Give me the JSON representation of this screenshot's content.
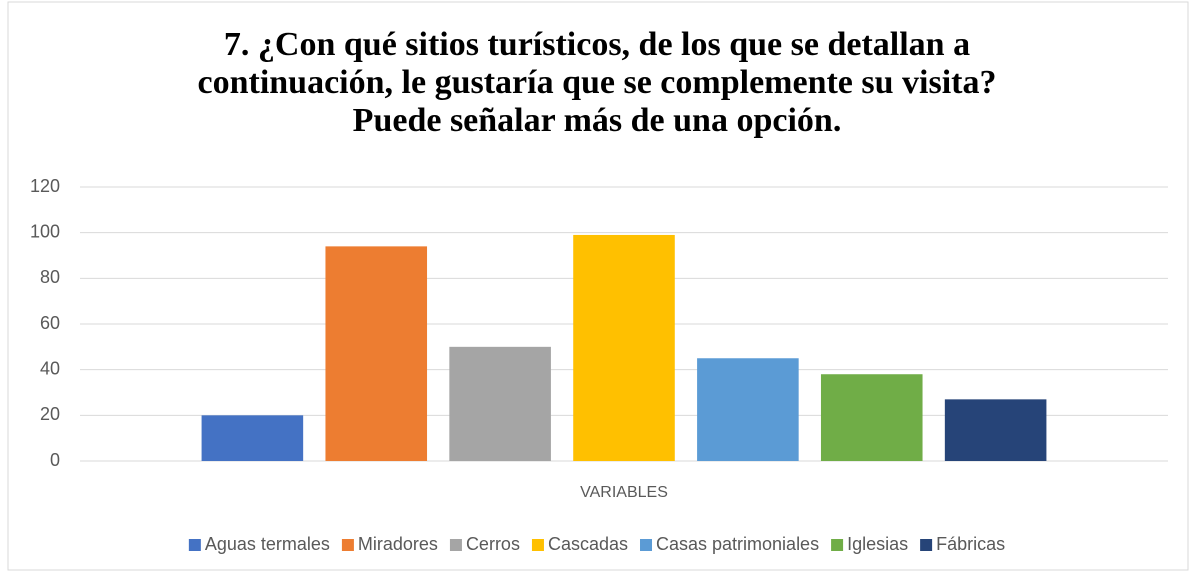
{
  "chart_data": {
    "type": "bar",
    "title": "7. ¿Con qué sitios turísticos, de los que se detallan a continuación, le gustaría que se complemente su visita? Puede señalar más de una opción.",
    "categories": [
      "VARIABLES"
    ],
    "series": [
      {
        "name": "Aguas termales",
        "color": "#4472c4",
        "values": [
          20
        ]
      },
      {
        "name": "Miradores",
        "color": "#ed7d31",
        "values": [
          94
        ]
      },
      {
        "name": "Cerros",
        "color": "#a5a5a5",
        "values": [
          50
        ]
      },
      {
        "name": "Cascadas",
        "color": "#ffc000",
        "values": [
          99
        ]
      },
      {
        "name": "Casas patrimoniales",
        "color": "#5b9bd5",
        "values": [
          45
        ]
      },
      {
        "name": "Iglesias",
        "color": "#70ad47",
        "values": [
          38
        ]
      },
      {
        "name": "Fábricas",
        "color": "#264478",
        "values": [
          27
        ]
      }
    ],
    "ylim": [
      0,
      120
    ],
    "yticks": [
      0,
      20,
      40,
      60,
      80,
      100,
      120
    ],
    "grid": true,
    "legend": "bottom"
  }
}
